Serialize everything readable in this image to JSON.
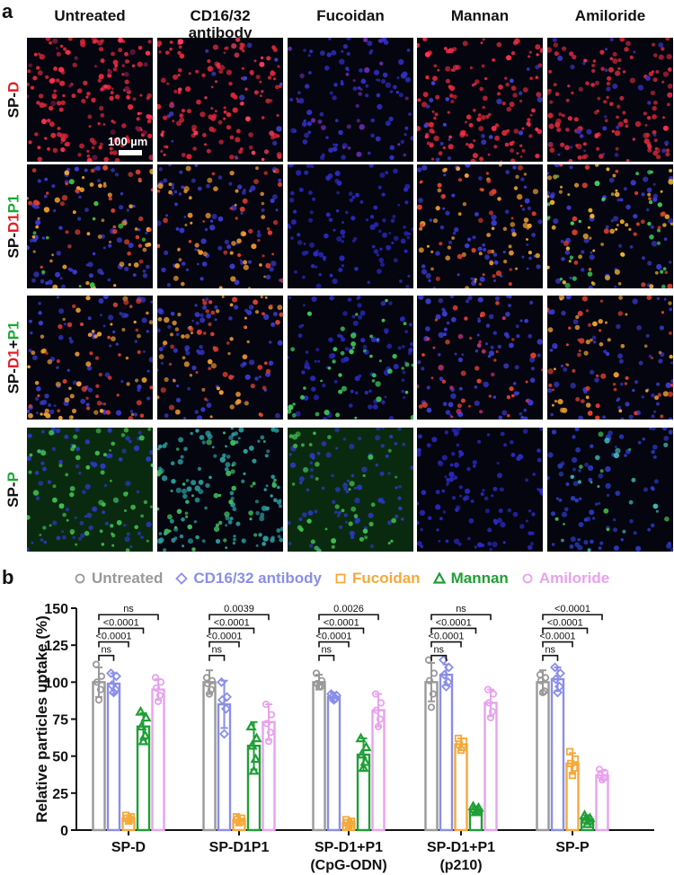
{
  "panel_a_label": "a",
  "panel_b_label": "b",
  "micrograph": {
    "columns": [
      "Untreated",
      "CD16/32\nantibody",
      "Fucoidan",
      "Mannan",
      "Amiloride"
    ],
    "rows": [
      {
        "parts": [
          {
            "text": "SP-",
            "color": "#111111"
          },
          {
            "text": "D",
            "color": "#e0202a"
          }
        ]
      },
      {
        "parts": [
          {
            "text": "SP-",
            "color": "#111111"
          },
          {
            "text": "D1",
            "color": "#e0202a"
          },
          {
            "text": "P1",
            "color": "#1ea836"
          }
        ]
      },
      {
        "parts": [
          {
            "text": "SP-",
            "color": "#111111"
          },
          {
            "text": "D1",
            "color": "#e0202a"
          },
          {
            "text": "+",
            "color": "#111111"
          },
          {
            "text": "P1",
            "color": "#1ea836"
          }
        ]
      },
      {
        "parts": [
          {
            "text": "SP-",
            "color": "#111111"
          },
          {
            "text": "P",
            "color": "#1ea836"
          }
        ]
      }
    ],
    "scale_bar_label": "100 µm"
  },
  "chart_data": {
    "type": "bar",
    "ylabel": "Relative particles uptake (%)",
    "ylim": [
      0,
      150
    ],
    "yticks": [
      0,
      25,
      50,
      75,
      100,
      125,
      150
    ],
    "categories": [
      {
        "line1": "SP-D",
        "line2": ""
      },
      {
        "line1": "SP-D1P1",
        "line2": ""
      },
      {
        "line1": "SP-D1+P1",
        "line2": "(CpG-ODN)"
      },
      {
        "line1": "SP-D1+P1",
        "line2": "(p210)"
      },
      {
        "line1": "SP-P",
        "line2": ""
      }
    ],
    "series": [
      {
        "name": "Untreated",
        "color": "#999999",
        "marker": "circle",
        "values": [
          100,
          100,
          100,
          100,
          100
        ],
        "errors": [
          10,
          8,
          5,
          13,
          8
        ],
        "points": [
          [
            112,
            104,
            100,
            95,
            88
          ],
          [
            103,
            101,
            99,
            95,
            92
          ],
          [
            106,
            101,
            99,
            97,
            97
          ],
          [
            115,
            106,
            101,
            92,
            83
          ],
          [
            105,
            103,
            101,
            94,
            93
          ]
        ]
      },
      {
        "name": "CD16/32 antibody",
        "color": "#8a8ee8",
        "marker": "diamond",
        "values": [
          99,
          85,
          90,
          105,
          102
        ],
        "errors": [
          7,
          16,
          3,
          7,
          8
        ],
        "points": [
          [
            106,
            104,
            98,
            95,
            93
          ],
          [
            100,
            90,
            88,
            82,
            65
          ],
          [
            92,
            91,
            90,
            89,
            88
          ],
          [
            115,
            110,
            105,
            100,
            97
          ],
          [
            110,
            106,
            102,
            97,
            93
          ]
        ]
      },
      {
        "name": "Fucoidan",
        "color": "#f5a93a",
        "marker": "square",
        "values": [
          8,
          7,
          5,
          58,
          45
        ],
        "errors": [
          2,
          3,
          2,
          4,
          7
        ],
        "points": [
          [
            10,
            9,
            8,
            7,
            6
          ],
          [
            9,
            8,
            7,
            6,
            5
          ],
          [
            7,
            6,
            5,
            4,
            3
          ],
          [
            62,
            60,
            58,
            56,
            54
          ],
          [
            53,
            48,
            45,
            42,
            37
          ]
        ]
      },
      {
        "name": "Mannan",
        "color": "#1f9f36",
        "marker": "triangle",
        "values": [
          70,
          57,
          51,
          14,
          7
        ],
        "errors": [
          9,
          16,
          11,
          2,
          3
        ],
        "points": [
          [
            80,
            76,
            70,
            64,
            60
          ],
          [
            70,
            62,
            57,
            48,
            40
          ],
          [
            62,
            56,
            51,
            46,
            42
          ],
          [
            16,
            15,
            14,
            13,
            12
          ],
          [
            10,
            8,
            7,
            6,
            4
          ]
        ]
      },
      {
        "name": "Amiloride",
        "color": "#e8a2ee",
        "marker": "circle",
        "values": [
          95,
          73,
          81,
          86,
          37
        ],
        "errors": [
          7,
          12,
          11,
          9,
          3
        ],
        "points": [
          [
            103,
            100,
            96,
            91,
            87
          ],
          [
            85,
            78,
            72,
            66,
            60
          ],
          [
            92,
            86,
            81,
            75,
            70
          ],
          [
            95,
            92,
            86,
            80,
            76
          ],
          [
            41,
            39,
            37,
            35,
            34
          ]
        ]
      }
    ],
    "significance": [
      [
        {
          "label": "ns",
          "to": 1
        },
        {
          "label": "<0.0001",
          "to": 2
        },
        {
          "label": "<0.0001",
          "to": 3
        },
        {
          "label": "ns",
          "to": 4
        }
      ],
      [
        {
          "label": "ns",
          "to": 1
        },
        {
          "label": "<0.0001",
          "to": 2
        },
        {
          "label": "<0.0001",
          "to": 3
        },
        {
          "label": "0.0039",
          "to": 4
        }
      ],
      [
        {
          "label": "ns",
          "to": 1
        },
        {
          "label": "<0.0001",
          "to": 2
        },
        {
          "label": "<0.0001",
          "to": 3
        },
        {
          "label": "0.0026",
          "to": 4
        }
      ],
      [
        {
          "label": "ns",
          "to": 1
        },
        {
          "label": "<0.0001",
          "to": 2
        },
        {
          "label": "<0.0001",
          "to": 3
        },
        {
          "label": "ns",
          "to": 4
        }
      ],
      [
        {
          "label": "ns",
          "to": 1
        },
        {
          "label": "<0.0001",
          "to": 2
        },
        {
          "label": "<0.0001",
          "to": 3
        },
        {
          "label": "<0.0001",
          "to": 4
        }
      ]
    ]
  }
}
